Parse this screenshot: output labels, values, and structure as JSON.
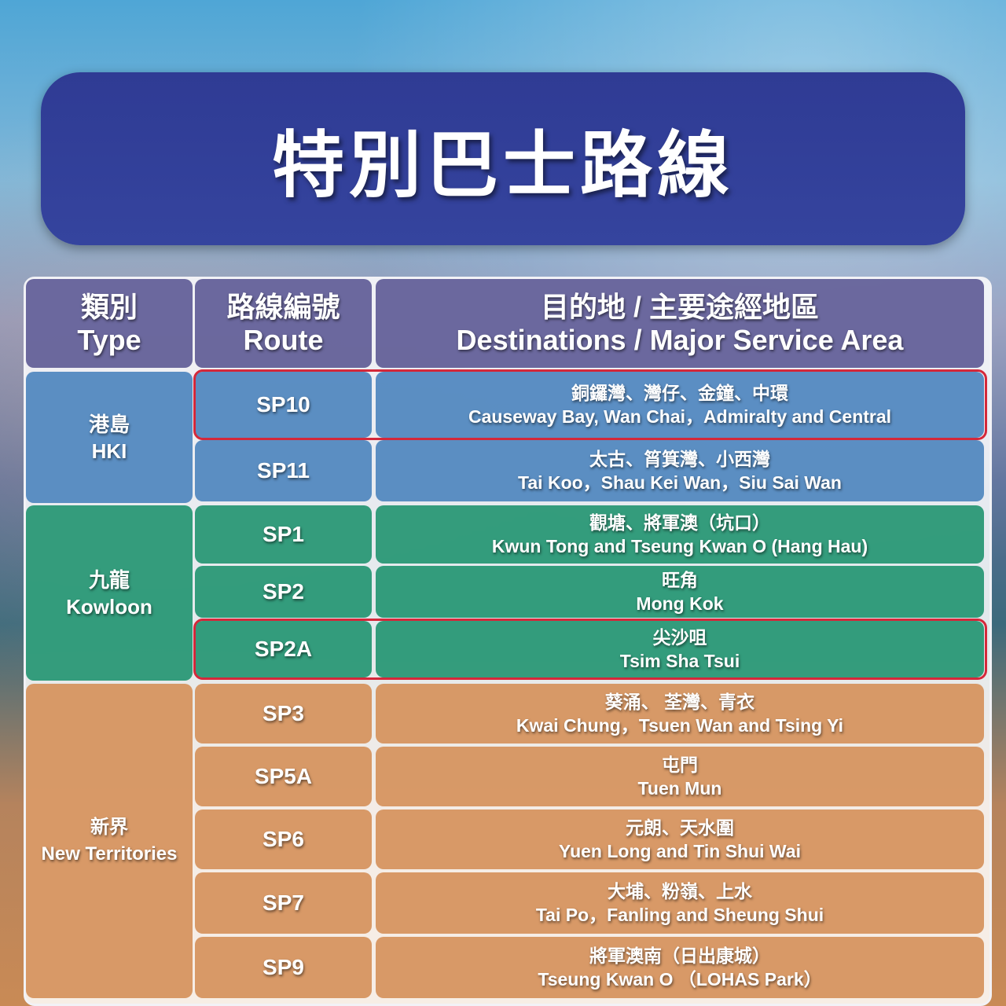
{
  "title": "特別巴士路線",
  "header": {
    "type_zh": "類別",
    "type_en": "Type",
    "route_zh": "路線編號",
    "route_en": "Route",
    "dest_zh": "目的地 / 主要途經地區",
    "dest_en": "Destinations / Major Service Area"
  },
  "groups": [
    {
      "zh": "港島",
      "en": "HKI",
      "color": "#5087be"
    },
    {
      "zh": "九龍",
      "en": "Kowloon",
      "color": "#26966f"
    },
    {
      "zh": "新界",
      "en": "New Territories",
      "color": "#d5925c"
    }
  ],
  "highlight_color": "#d4283a",
  "rows": [
    {
      "group": 0,
      "route": "SP10",
      "zh": "銅鑼灣、灣仔、金鐘、中環",
      "en": "Causeway Bay, Wan Chai，Admiralty and Central",
      "highlighted": true
    },
    {
      "group": 0,
      "route": "SP11",
      "zh": "太古、筲箕灣、小西灣",
      "en": "Tai Koo，Shau Kei Wan，Siu Sai Wan",
      "highlighted": false
    },
    {
      "group": 1,
      "route": "SP1",
      "zh": "觀塘、將軍澳（坑口）",
      "en": "Kwun Tong and Tseung Kwan O (Hang Hau)",
      "highlighted": false
    },
    {
      "group": 1,
      "route": "SP2",
      "zh": "旺角",
      "en": "Mong Kok",
      "highlighted": false
    },
    {
      "group": 1,
      "route": "SP2A",
      "zh": "尖沙咀",
      "en": "Tsim Sha Tsui",
      "highlighted": true
    },
    {
      "group": 2,
      "route": "SP3",
      "zh": "葵涌、 荃灣、青衣",
      "en": "Kwai Chung，Tsuen Wan and Tsing Yi",
      "highlighted": false
    },
    {
      "group": 2,
      "route": "SP5A",
      "zh": "屯門",
      "en": "Tuen Mun",
      "highlighted": false
    },
    {
      "group": 2,
      "route": "SP6",
      "zh": "元朗、天水圍",
      "en": "Yuen Long and Tin Shui Wai",
      "highlighted": false
    },
    {
      "group": 2,
      "route": "SP7",
      "zh": "大埔、粉嶺、上水",
      "en": "Tai Po，Fanling and Sheung Shui",
      "highlighted": false
    },
    {
      "group": 2,
      "route": "SP9",
      "zh": "將軍澳南（日出康城）",
      "en": "Tseung Kwan O （LOHAS Park）",
      "highlighted": false
    }
  ]
}
